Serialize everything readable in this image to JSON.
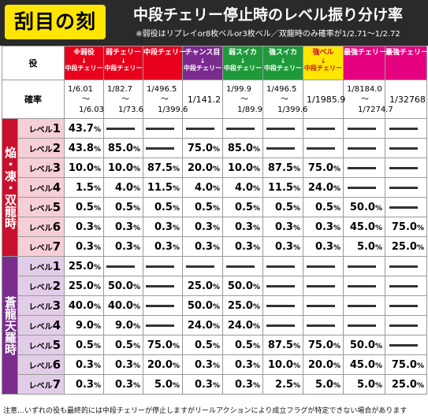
{
  "header": {
    "badge": "刮目の刻",
    "title": "中段チェリー停止時のレベル振り分け率",
    "note": "※弱役はリプレイor8枚ベルor3枚ベル／双龍時のみ確率が1/2.71〜1/2.72"
  },
  "table": {
    "role_header": "役",
    "prob_header": "確率",
    "level_prefix": "レベル",
    "dash_symbol": "—",
    "columns": [
      {
        "name": "※弱役",
        "sub": "中段チェリー",
        "color": "#e8001c",
        "text_color": "#ffffff",
        "prob": [
          "1/6.01",
          "〜",
          "1/6.03"
        ]
      },
      {
        "name": "弱チェリー",
        "sub": "中段チェリー",
        "color": "#e8001c",
        "text_color": "#ffffff",
        "prob": [
          "1/82.7",
          "〜",
          "1/73.6"
        ]
      },
      {
        "name": "中段チェリー",
        "sub": "",
        "color": "#e8001c",
        "text_color": "#ffffff",
        "prob": [
          "1/496.5",
          "〜",
          "1/399.6"
        ]
      },
      {
        "name": "チャンス目",
        "sub": "中段チェリー",
        "color": "#7b2b8f",
        "text_color": "#ffffff",
        "prob": [
          "1/141.2"
        ]
      },
      {
        "name": "弱スイカ",
        "sub": "中段チェリー",
        "color": "#1f9a3a",
        "text_color": "#ffffff",
        "prob": [
          "1/99.9",
          "〜",
          "1/89.9"
        ]
      },
      {
        "name": "強スイカ",
        "sub": "中段チェリー",
        "color": "#1f9a3a",
        "text_color": "#ffffff",
        "prob": [
          "1/496.5",
          "〜",
          "1/399.6"
        ]
      },
      {
        "name": "強ベル",
        "sub": "中段チェリー",
        "color": "#ffe600",
        "text_color": "#c8102e",
        "prob": [
          "1/1985.9"
        ]
      },
      {
        "name": "最強チェリーA",
        "sub": "",
        "color": "#e4007f",
        "text_color": "#ffffff",
        "prob": [
          "1/8184.0",
          "〜",
          "1/7274.7"
        ]
      },
      {
        "name": "最強チェリーB",
        "sub": "",
        "color": "#e4007f",
        "text_color": "#ffffff",
        "prob": [
          "1/32768"
        ]
      }
    ],
    "groups": [
      {
        "label": "焔・凍・双龍時",
        "color": "red",
        "rows": [
          {
            "level": "1",
            "values": [
              "43.7",
              null,
              null,
              null,
              null,
              null,
              null,
              null,
              null
            ]
          },
          {
            "level": "2",
            "values": [
              "43.8",
              "85.0",
              null,
              "75.0",
              "85.0",
              null,
              null,
              null,
              null
            ]
          },
          {
            "level": "3",
            "values": [
              "10.0",
              "10.0",
              "87.5",
              "20.0",
              "10.0",
              "87.5",
              "75.0",
              null,
              null
            ]
          },
          {
            "level": "4",
            "values": [
              "1.5",
              "4.0",
              "11.5",
              "4.0",
              "4.0",
              "11.5",
              "24.0",
              null,
              null
            ]
          },
          {
            "level": "5",
            "values": [
              "0.5",
              "0.5",
              "0.5",
              "0.5",
              "0.5",
              "0.5",
              "0.5",
              "50.0",
              null
            ]
          },
          {
            "level": "6",
            "values": [
              "0.3",
              "0.3",
              "0.3",
              "0.3",
              "0.3",
              "0.3",
              "0.3",
              "45.0",
              "75.0"
            ]
          },
          {
            "level": "7",
            "values": [
              "0.3",
              "0.3",
              "0.3",
              "0.3",
              "0.3",
              "0.3",
              "0.3",
              "5.0",
              "25.0"
            ]
          }
        ]
      },
      {
        "label": "蒼龍天羅時",
        "color": "purple",
        "rows": [
          {
            "level": "1",
            "values": [
              "25.0",
              null,
              null,
              null,
              null,
              null,
              null,
              null,
              null
            ]
          },
          {
            "level": "2",
            "values": [
              "25.0",
              "50.0",
              null,
              "25.0",
              "50.0",
              null,
              null,
              null,
              null
            ]
          },
          {
            "level": "3",
            "values": [
              "40.0",
              "40.0",
              null,
              "50.0",
              "25.0",
              null,
              null,
              null,
              null
            ]
          },
          {
            "level": "4",
            "values": [
              "9.0",
              "9.0",
              null,
              "24.0",
              "24.0",
              null,
              null,
              null,
              null
            ]
          },
          {
            "level": "5",
            "values": [
              "0.5",
              "0.5",
              "75.0",
              "0.5",
              "0.5",
              "87.5",
              "75.0",
              "50.0",
              null
            ]
          },
          {
            "level": "6",
            "values": [
              "0.3",
              "0.3",
              "20.0",
              "0.3",
              "0.3",
              "10.0",
              "20.0",
              "45.0",
              "75.0"
            ]
          },
          {
            "level": "7",
            "values": [
              "0.3",
              "0.3",
              "5.0",
              "0.3",
              "0.3",
              "2.5",
              "5.0",
              "5.0",
              "25.0"
            ]
          }
        ]
      }
    ]
  },
  "footer": "注意…いずれの役も最終的には中段チェリーが停止しますがリールアクションにより成立フラグが特定できない場合があります"
}
